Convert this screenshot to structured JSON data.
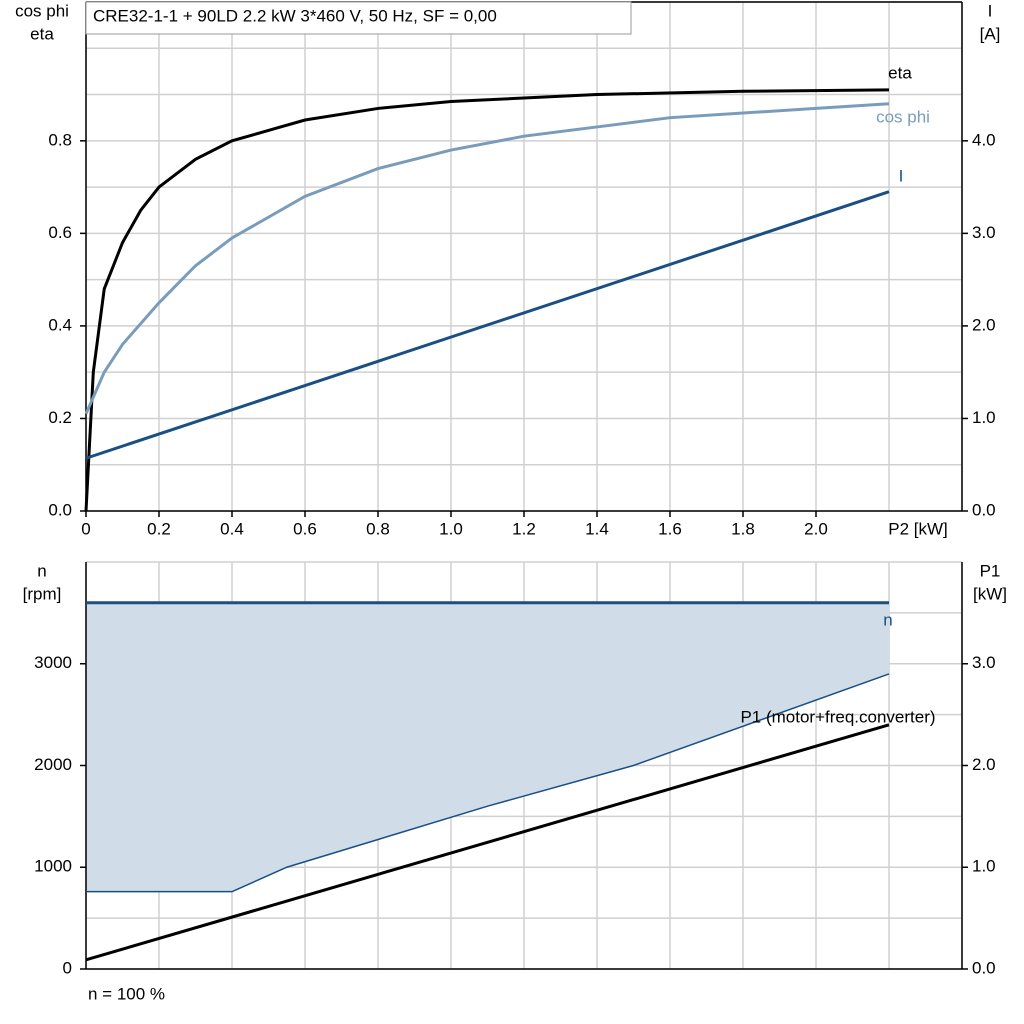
{
  "chart_data": [
    {
      "type": "line",
      "title": "CRE32-1-1 + 90LD   2.2 kW   3*460 V, 50 Hz, SF = 0,00",
      "ylabel": [
        "cos phi",
        "eta"
      ],
      "y2label": [
        "I",
        "[A]"
      ],
      "xlabel": "P2 [kW]",
      "xlim": [
        0,
        2.4
      ],
      "xticks": [
        0,
        0.2,
        0.4,
        0.6,
        0.8,
        {
          "value": 1,
          "label": "1.0"
        },
        1.2,
        1.4,
        1.6,
        1.8,
        {
          "value": 2,
          "label": "2.0"
        }
      ],
      "xgrid_step": 0.2,
      "ylim": [
        0,
        1.1
      ],
      "yticks": [
        {
          "value": 0,
          "label": "0.0"
        },
        0.2,
        0.4,
        0.6,
        0.8
      ],
      "ygrid_step": 0.1,
      "y2lim": [
        0,
        5.5
      ],
      "y2ticks": [
        {
          "value": 0,
          "label": "0.0"
        },
        {
          "value": 1,
          "label": "1.0"
        },
        {
          "value": 2,
          "label": "2.0"
        },
        {
          "value": 3,
          "label": "3.0"
        },
        {
          "value": 4,
          "label": "4.0"
        }
      ],
      "series": [
        {
          "name": "eta",
          "color": "#000000",
          "x": [
            0,
            0.02,
            0.05,
            0.1,
            0.15,
            0.2,
            0.3,
            0.4,
            0.6,
            0.8,
            1.0,
            1.4,
            1.8,
            2.2
          ],
          "values": [
            0,
            0.3,
            0.48,
            0.58,
            0.65,
            0.7,
            0.76,
            0.8,
            0.845,
            0.87,
            0.885,
            0.9,
            0.907,
            0.91
          ]
        },
        {
          "name": "cos phi",
          "color": "#7a9cbb",
          "x": [
            0,
            0.05,
            0.1,
            0.2,
            0.3,
            0.4,
            0.6,
            0.8,
            1.0,
            1.2,
            1.4,
            1.6,
            1.8,
            2.0,
            2.2
          ],
          "values": [
            0.21,
            0.3,
            0.36,
            0.45,
            0.53,
            0.59,
            0.68,
            0.74,
            0.78,
            0.81,
            0.83,
            0.85,
            0.86,
            0.87,
            0.88
          ]
        },
        {
          "name": "I",
          "color": "#1a4f84",
          "axis": "y2",
          "x": [
            0,
            2.2
          ],
          "values": [
            0.57,
            3.45
          ]
        }
      ]
    },
    {
      "type": "line",
      "ylabel": [
        "n",
        "[rpm]"
      ],
      "y2label": [
        "P1",
        "[kW]"
      ],
      "footnote": "n = 100 %",
      "xlim": [
        0,
        2.4
      ],
      "xgrid_step": 0.2,
      "ylim": [
        0,
        4000
      ],
      "yticks": [
        0,
        1000,
        2000,
        3000
      ],
      "ygrid_step": 500,
      "y2lim": [
        0,
        4
      ],
      "y2ticks": [
        {
          "value": 0,
          "label": "0.0"
        },
        {
          "value": 1,
          "label": "1.0"
        },
        {
          "value": 2,
          "label": "2.0"
        },
        {
          "value": 3,
          "label": "3.0"
        }
      ],
      "series": [
        {
          "name": "n",
          "color": "#1a4f84",
          "x": [
            0,
            2.2
          ],
          "values": [
            3600,
            3600
          ]
        },
        {
          "color": "#1a4f84",
          "fill_color": "#d0dce8",
          "fill_to_series": 0,
          "x": [
            0,
            0.4,
            0.55,
            1.1,
            1.5,
            2.2
          ],
          "values": [
            760,
            760,
            1000,
            1600,
            2000,
            2900
          ]
        },
        {
          "name": "P1 (motor+freq.converter)",
          "color": "#000000",
          "axis": "y2",
          "x": [
            0,
            2.2
          ],
          "values": [
            0.09,
            2.4
          ]
        }
      ]
    }
  ]
}
